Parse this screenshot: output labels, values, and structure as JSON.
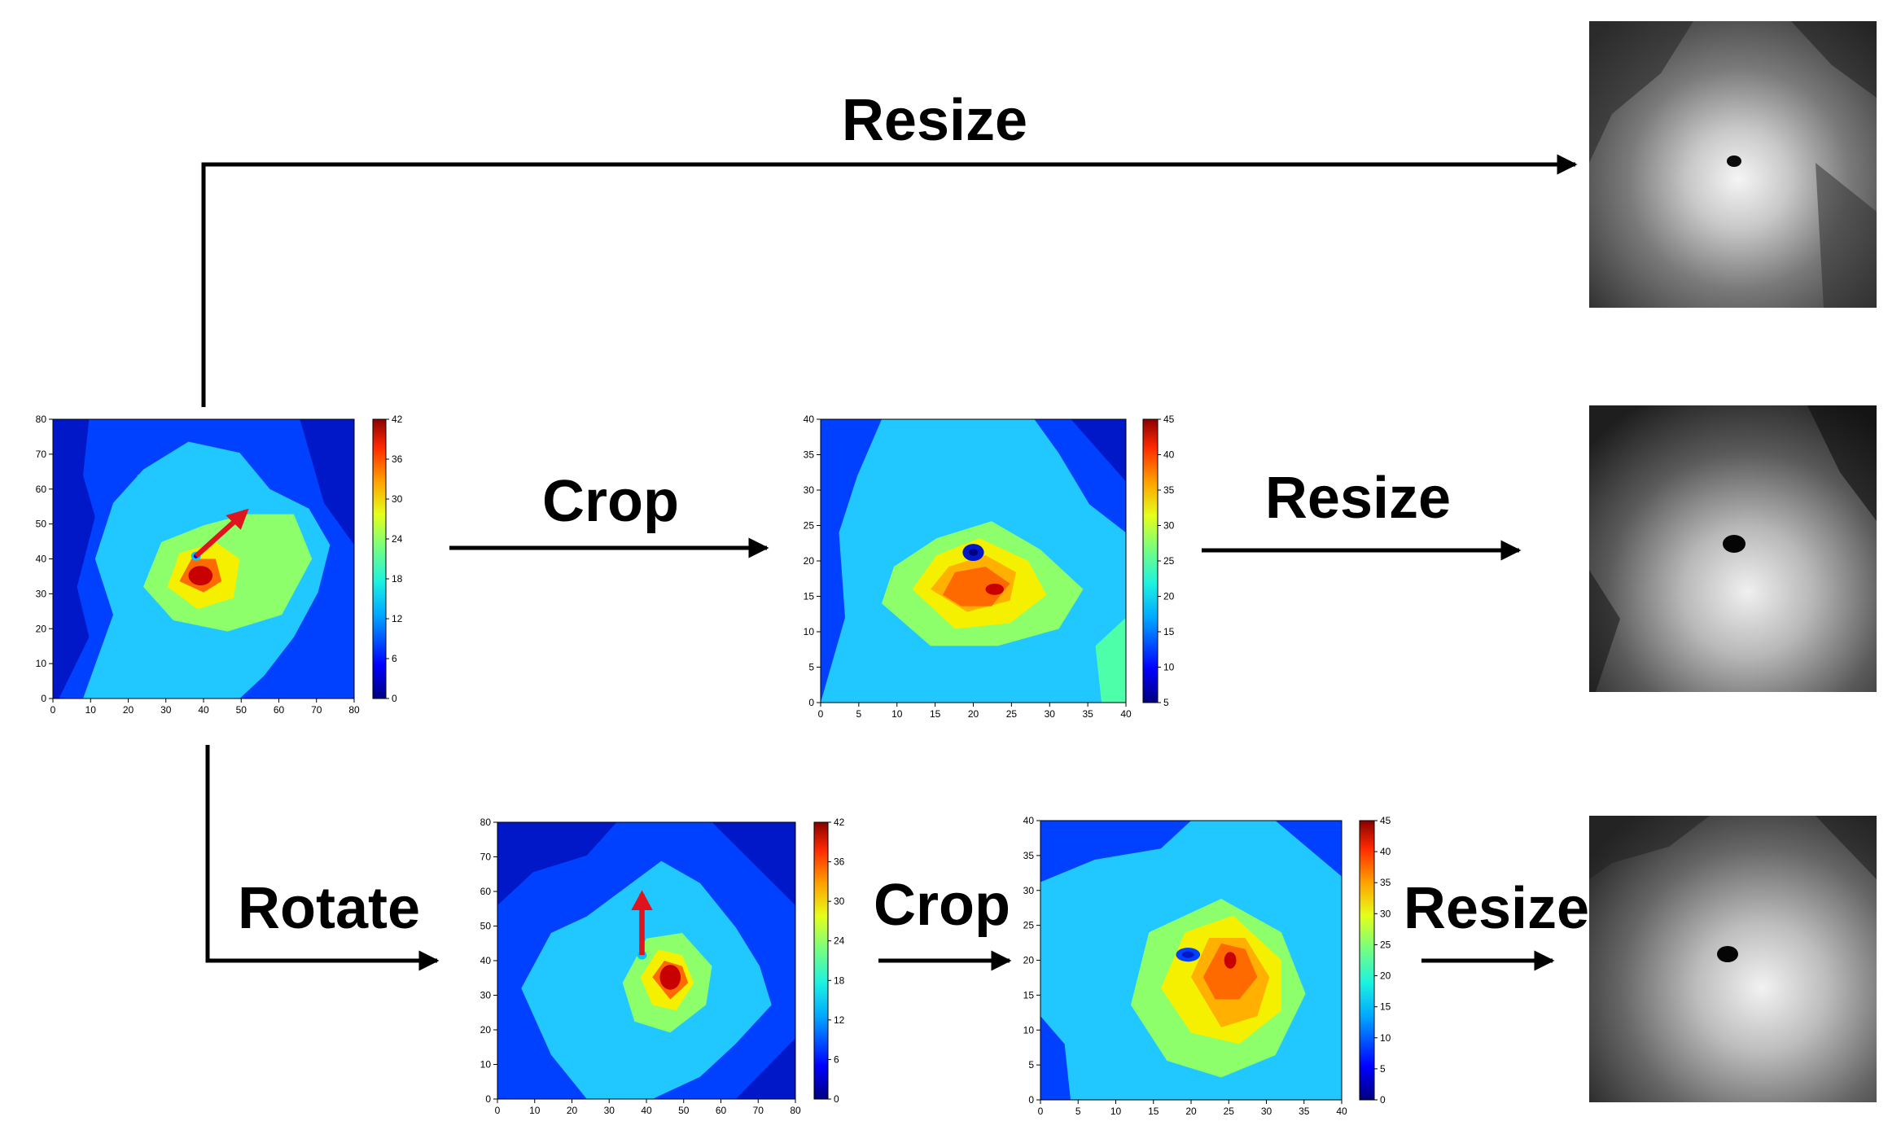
{
  "labels": {
    "resize_top": "Resize",
    "crop_mid": "Crop",
    "resize_mid": "Resize",
    "rotate_bot": "Rotate",
    "crop_bot": "Crop",
    "resize_bot": "Resize"
  },
  "plots": {
    "original": {
      "x_ticks": [
        "0",
        "10",
        "20",
        "30",
        "40",
        "50",
        "60",
        "70",
        "80"
      ],
      "y_ticks": [
        "0",
        "10",
        "20",
        "30",
        "40",
        "50",
        "60",
        "70",
        "80"
      ],
      "colorbar_ticks": [
        "0",
        "6",
        "12",
        "18",
        "24",
        "30",
        "36",
        "42"
      ]
    },
    "cropped": {
      "x_ticks": [
        "0",
        "5",
        "10",
        "15",
        "20",
        "25",
        "30",
        "35",
        "40"
      ],
      "y_ticks": [
        "0",
        "5",
        "10",
        "15",
        "20",
        "25",
        "30",
        "35",
        "40"
      ],
      "colorbar_ticks": [
        "5",
        "10",
        "15",
        "20",
        "25",
        "30",
        "35",
        "40",
        "45"
      ]
    },
    "rotated": {
      "x_ticks": [
        "0",
        "10",
        "20",
        "30",
        "40",
        "50",
        "60",
        "70",
        "80"
      ],
      "y_ticks": [
        "0",
        "10",
        "20",
        "30",
        "40",
        "50",
        "60",
        "70",
        "80"
      ],
      "colorbar_ticks": [
        "0",
        "6",
        "12",
        "18",
        "24",
        "30",
        "36",
        "42"
      ]
    },
    "rotated_cropped": {
      "x_ticks": [
        "0",
        "5",
        "10",
        "15",
        "20",
        "25",
        "30",
        "35",
        "40"
      ],
      "y_ticks": [
        "0",
        "5",
        "10",
        "15",
        "20",
        "25",
        "30",
        "35",
        "40"
      ],
      "colorbar_ticks": [
        "0",
        "5",
        "10",
        "15",
        "20",
        "25",
        "30",
        "35",
        "40",
        "45"
      ]
    }
  },
  "colors": {
    "jet": [
      "#00007f",
      "#0000ff",
      "#0063ff",
      "#00d4ff",
      "#4effa9",
      "#a9ff4e",
      "#ffe600",
      "#ff7a00",
      "#ff1400",
      "#7f0000"
    ],
    "arrow": "#e0141e"
  }
}
